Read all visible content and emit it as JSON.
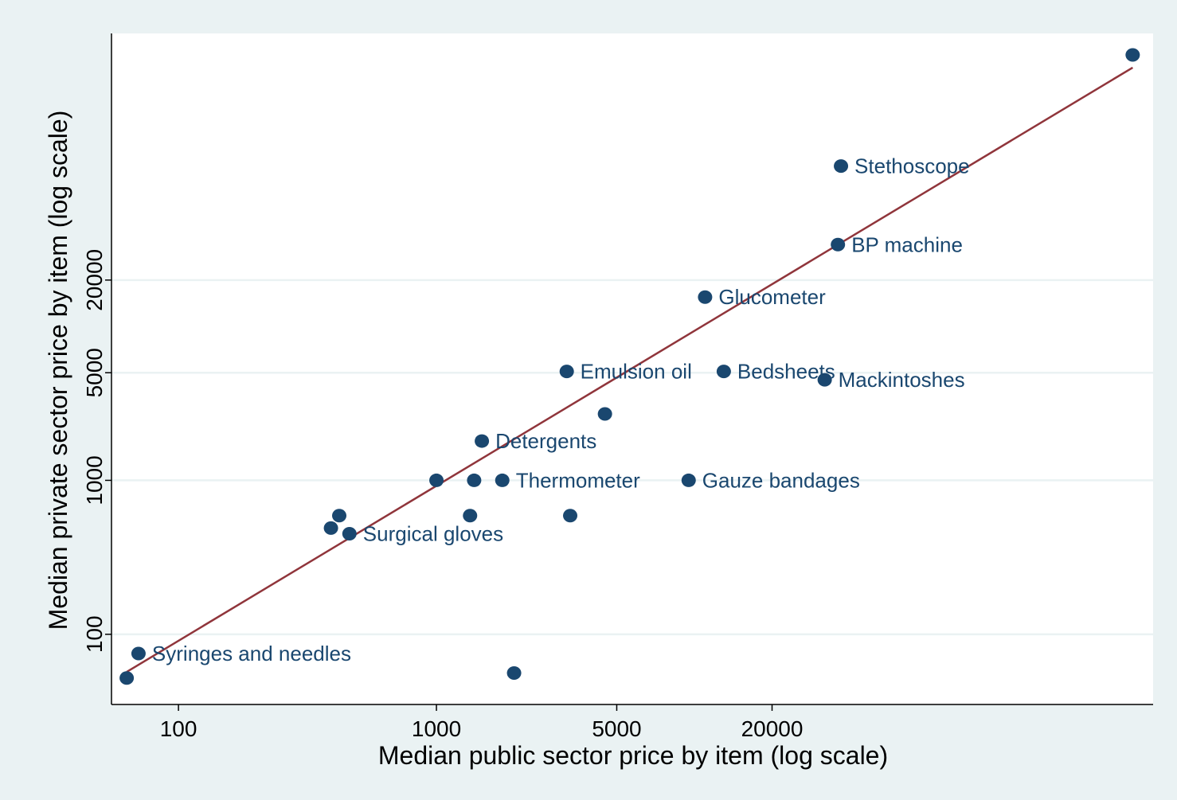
{
  "chart_data": {
    "type": "scatter",
    "title": "",
    "xlabel": "Median public sector price by item (log scale)",
    "ylabel": "Median private sector price by item (log scale)",
    "xscale": "log",
    "yscale": "log",
    "xlim": [
      55,
      600000
    ],
    "ylim": [
      35,
      800000
    ],
    "x_ticks": [
      {
        "value": 100,
        "label": "100"
      },
      {
        "value": 1000,
        "label": "1000"
      },
      {
        "value": 5000,
        "label": "5000"
      },
      {
        "value": 20000,
        "label": "20000"
      }
    ],
    "y_ticks": [
      {
        "value": 100,
        "label": "100"
      },
      {
        "value": 1000,
        "label": "1000"
      },
      {
        "value": 5000,
        "label": "5000"
      },
      {
        "value": 20000,
        "label": "20000"
      }
    ],
    "grid": "horizontal",
    "legend": "none",
    "colors": {
      "background": "#eaf2f3",
      "plot_background": "#ffffff",
      "marker": "#1a476f",
      "fit_line": "#90353b",
      "label_text": "#1a476f",
      "grid": "#eaf2f3"
    },
    "points": [
      {
        "x": 500000,
        "y": 580000,
        "label": ""
      },
      {
        "x": 37000,
        "y": 110000,
        "label": "Stethoscope"
      },
      {
        "x": 36000,
        "y": 34000,
        "label": "BP machine"
      },
      {
        "x": 11000,
        "y": 15500,
        "label": "Glucometer"
      },
      {
        "x": 32000,
        "y": 4500,
        "label": "Mackintoshes"
      },
      {
        "x": 3200,
        "y": 5100,
        "label": "Emulsion oil"
      },
      {
        "x": 13000,
        "y": 5100,
        "label": "Bedsheets"
      },
      {
        "x": 4500,
        "y": 2700,
        "label": ""
      },
      {
        "x": 1500,
        "y": 1800,
        "label": "Detergents"
      },
      {
        "x": 1000,
        "y": 1000,
        "label": ""
      },
      {
        "x": 1400,
        "y": 1000,
        "label": ""
      },
      {
        "x": 1800,
        "y": 1000,
        "label": "Thermometer"
      },
      {
        "x": 9500,
        "y": 1000,
        "label": "Gauze bandages"
      },
      {
        "x": 1350,
        "y": 590,
        "label": ""
      },
      {
        "x": 3300,
        "y": 590,
        "label": ""
      },
      {
        "x": 420,
        "y": 590,
        "label": ""
      },
      {
        "x": 390,
        "y": 490,
        "label": ""
      },
      {
        "x": 460,
        "y": 450,
        "label": "Surgical gloves"
      },
      {
        "x": 70,
        "y": 75,
        "label": "Syringes and needles"
      },
      {
        "x": 63,
        "y": 52,
        "label": ""
      },
      {
        "x": 2000,
        "y": 56,
        "label": ""
      }
    ],
    "fit_line": {
      "x": [
        63,
        500000
      ],
      "y": [
        57,
        480000
      ]
    }
  }
}
